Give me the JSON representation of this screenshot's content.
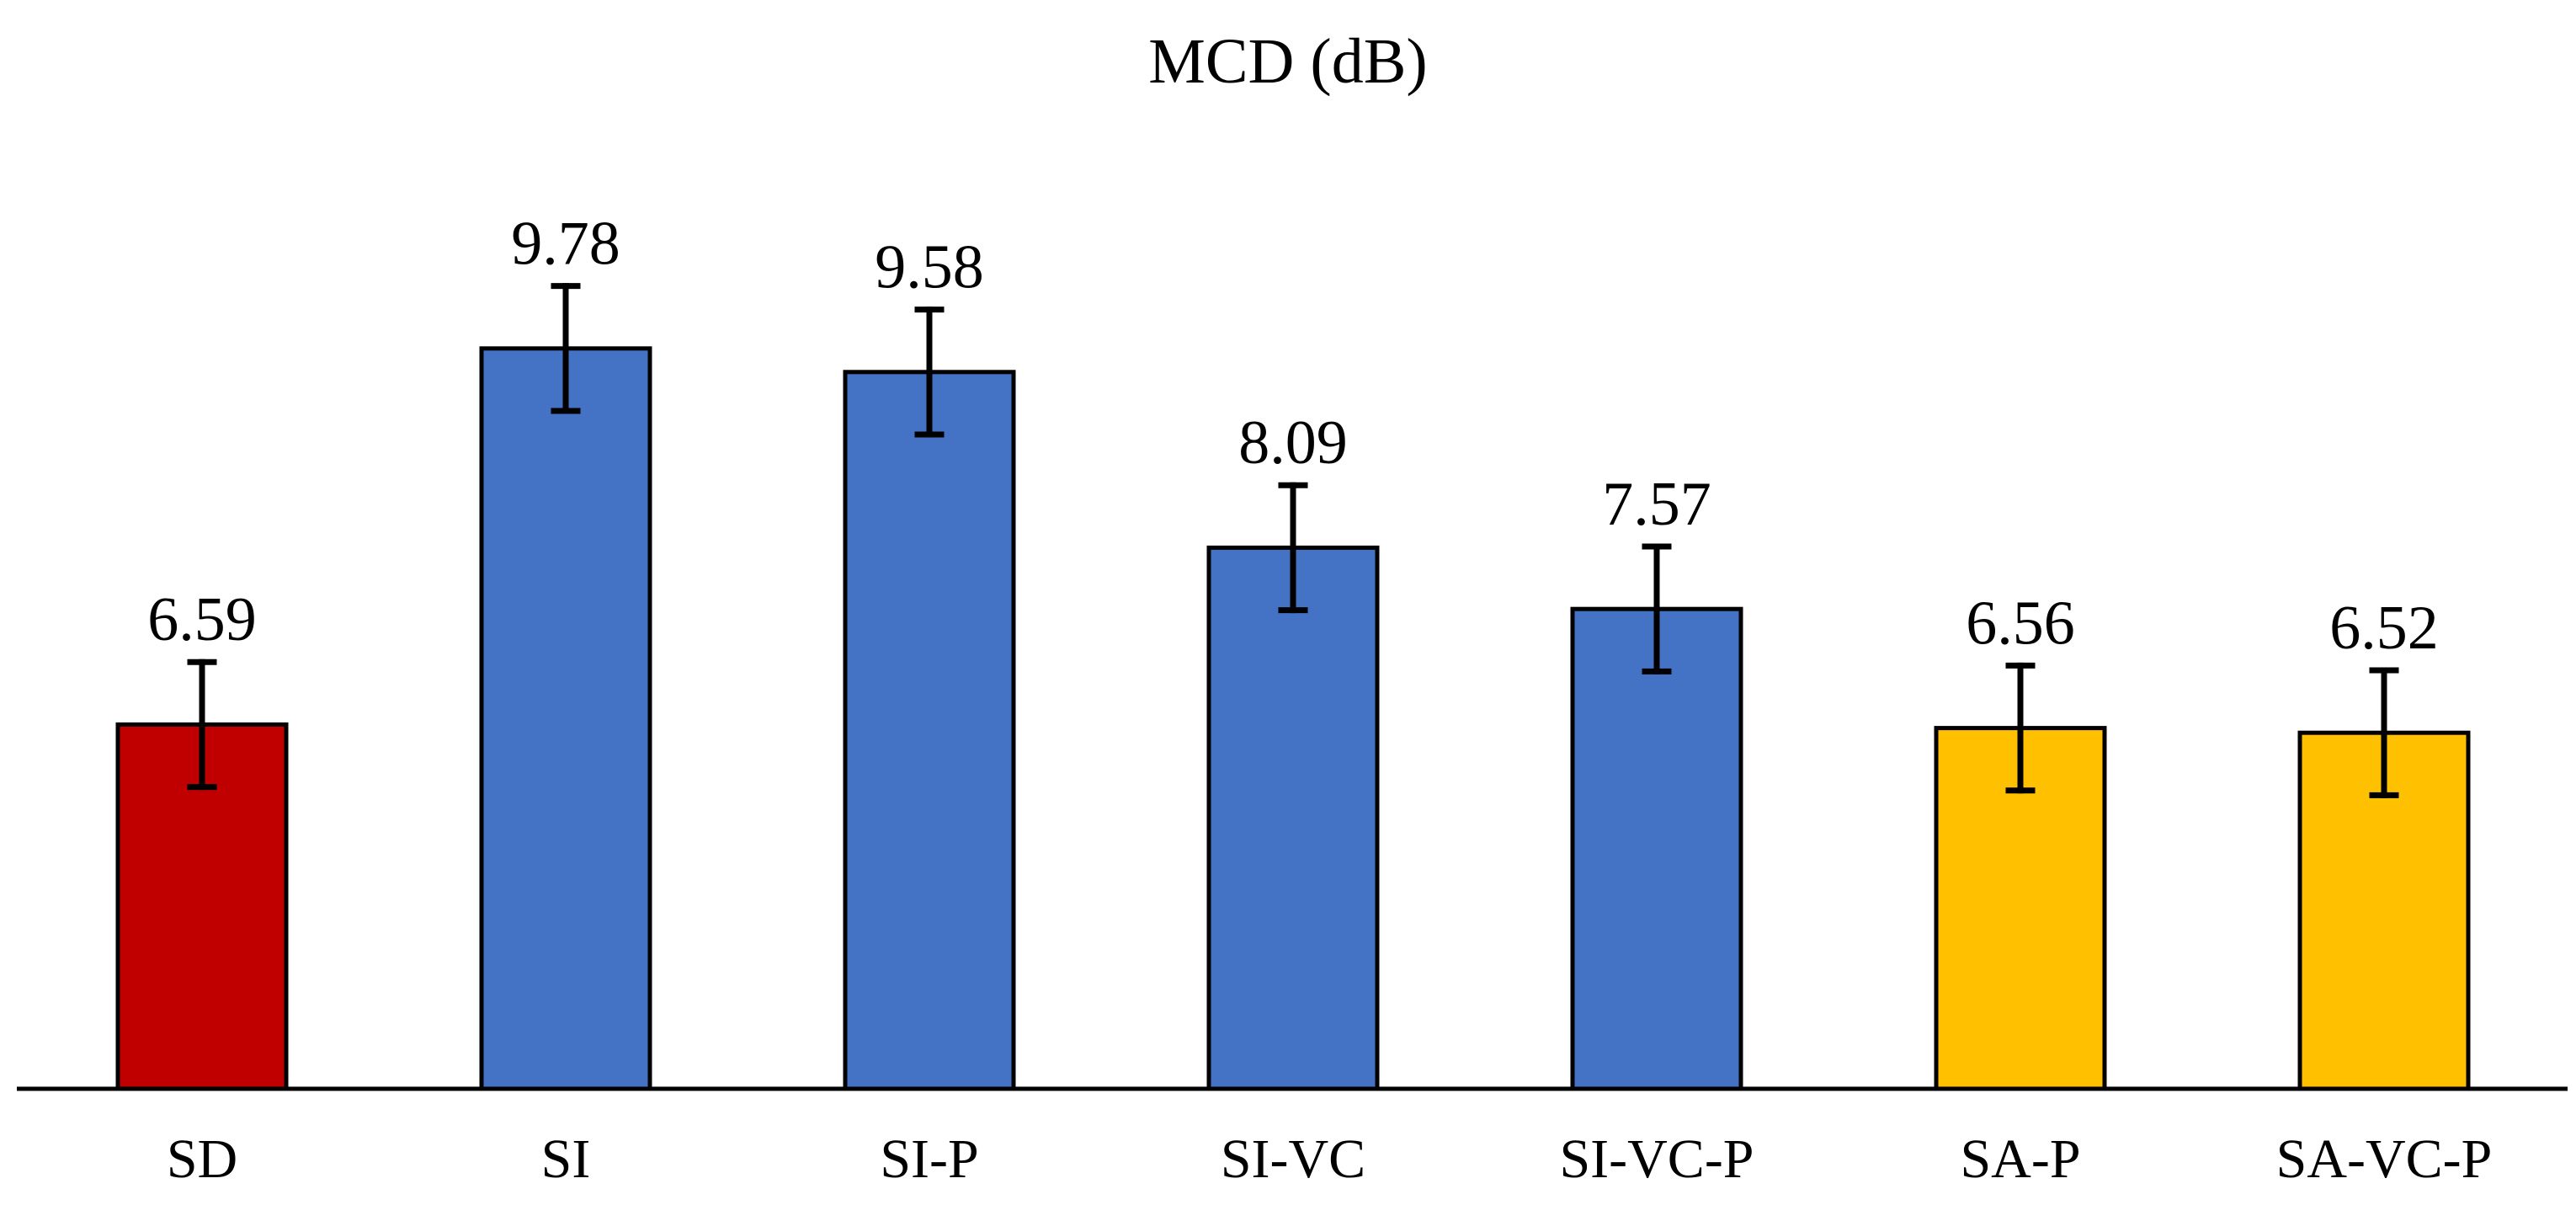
{
  "chart_data": {
    "type": "bar",
    "title": "MCD (dB)",
    "xlabel": "",
    "ylabel": "",
    "ylim": [
      3.5,
      10.5
    ],
    "grid": false,
    "legend": "none",
    "categories": [
      "SD",
      "SI",
      "SI-P",
      "SI-VC",
      "SI-VC-P",
      "SA-P",
      "SA-VC-P"
    ],
    "values": [
      6.59,
      9.78,
      9.58,
      8.09,
      7.57,
      6.56,
      6.52
    ],
    "value_labels": [
      "6.59",
      "9.78",
      "9.58",
      "8.09",
      "7.57",
      "6.56",
      "6.52"
    ],
    "errors": [
      0.53,
      0.53,
      0.53,
      0.53,
      0.53,
      0.53,
      0.53
    ],
    "colors": [
      "#C00000",
      "#4472C4",
      "#4472C4",
      "#4472C4",
      "#4472C4",
      "#FFC000",
      "#FFC000"
    ],
    "edge_color": "#000000"
  }
}
